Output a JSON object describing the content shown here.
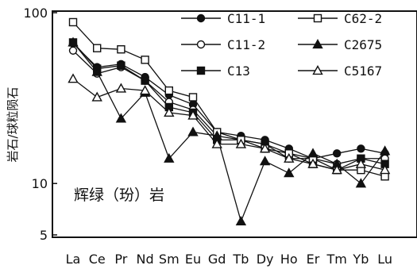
{
  "chart_data": {
    "type": "line",
    "ylabel": "岩石/球粒陨石",
    "yscale": "log",
    "ylim": [
      5,
      100
    ],
    "yticks": [
      5,
      10,
      100
    ],
    "categories": [
      "La",
      "Ce",
      "Pr",
      "Nd",
      "Sm",
      "Eu",
      "Gd",
      "Tb",
      "Dy",
      "Ho",
      "Er",
      "Tm",
      "Yb",
      "Lu"
    ],
    "annotation": "辉绿（玢）岩",
    "legend_position": "top-right",
    "series": [
      {
        "name": "C11-1",
        "marker": "circle-filled",
        "values": [
          66,
          48,
          50,
          42,
          33,
          29,
          20,
          19,
          18,
          16,
          14,
          15,
          16,
          15
        ]
      },
      {
        "name": "C11-2",
        "marker": "circle-open",
        "values": [
          60,
          44,
          48,
          40,
          30,
          27,
          19,
          18,
          17,
          14,
          14,
          13,
          14,
          14
        ]
      },
      {
        "name": "C13",
        "marker": "square-filled",
        "values": [
          67,
          47,
          49,
          40,
          28,
          26,
          18,
          18,
          17,
          15,
          13,
          12,
          14,
          13
        ]
      },
      {
        "name": "C62-2",
        "marker": "square-open",
        "values": [
          88,
          62,
          61,
          53,
          35,
          32,
          20,
          18,
          16,
          15,
          14,
          12,
          12,
          11
        ]
      },
      {
        "name": "C2675",
        "marker": "triangle-filled",
        "values": [
          67,
          45,
          24,
          34,
          14,
          20,
          19,
          6,
          13.5,
          11.5,
          15,
          13,
          10,
          15.5
        ]
      },
      {
        "name": "C5167",
        "marker": "triangle-open",
        "values": [
          41,
          32,
          36,
          35,
          26,
          25,
          17,
          17,
          16,
          14,
          13,
          12,
          13,
          12
        ]
      }
    ]
  }
}
